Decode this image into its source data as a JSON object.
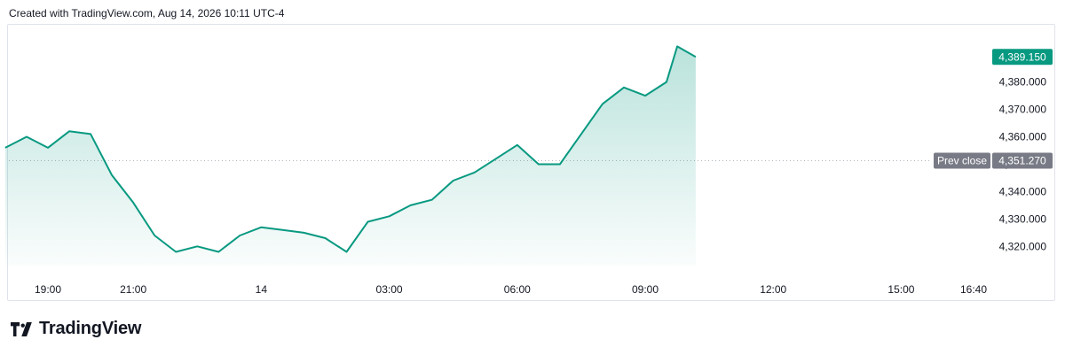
{
  "header": {
    "created_text": "Created with TradingView.com, Aug 14, 2026 10:11 UTC-4"
  },
  "footer": {
    "brand": "TradingView"
  },
  "colors": {
    "line": "#089981",
    "area_top": "#089981",
    "last_label_bg": "#089981",
    "prev_label_bg": "#787b86",
    "axis_text": "#131722",
    "prev_line": "#b2b5be"
  },
  "chart_data": {
    "type": "area",
    "series": [
      {
        "name": "",
        "x": [
          "18:00",
          "18:30",
          "19:00",
          "19:30",
          "20:00",
          "20:30",
          "21:00",
          "21:30",
          "22:00",
          "22:30",
          "23:00",
          "23:30",
          "00:00",
          "00:30",
          "01:00",
          "01:30",
          "02:00",
          "02:30",
          "03:00",
          "03:30",
          "04:00",
          "04:30",
          "05:00",
          "05:30",
          "06:00",
          "06:30",
          "07:00",
          "07:30",
          "08:00",
          "08:30",
          "09:00",
          "09:30",
          "09:45",
          "10:11"
        ],
        "values": [
          4356,
          4360,
          4356,
          4362,
          4361,
          4346,
          4336,
          4324,
          4318,
          4320,
          4318,
          4324,
          4327,
          4326,
          4325,
          4323,
          4318,
          4329,
          4331,
          4335,
          4337,
          4344,
          4347,
          4352,
          4357,
          4350,
          4350,
          4361,
          4372,
          4378,
          4375,
          4380,
          4393,
          4389.15
        ]
      }
    ],
    "x_ticks": [
      "19:00",
      "21:00",
      "14",
      "03:00",
      "06:00",
      "09:00",
      "12:00",
      "15:00",
      "16:40"
    ],
    "y_ticks": [
      "4,380.000",
      "4,370.000",
      "4,360.000",
      "4,350.000",
      "4,340.000",
      "4,330.000",
      "4,320.000"
    ],
    "ylim": [
      4313,
      4397
    ],
    "last_value": 4389.15,
    "last_value_label": "4,389.150",
    "prev_close": 4351.27,
    "prev_close_value_label": "4,351.270",
    "prev_close_text": "Prev close",
    "grid": false
  }
}
